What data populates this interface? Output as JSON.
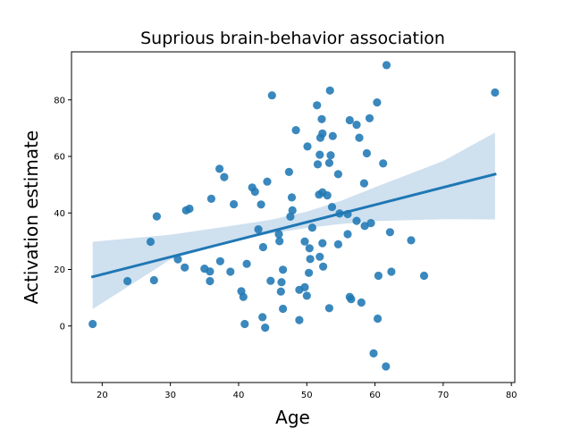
{
  "chart_data": {
    "type": "scatter",
    "title": "Suprious brain-behavior association",
    "xlabel": "Age",
    "ylabel": "Activation estimate",
    "xlim": [
      15.5,
      80.5
    ],
    "ylim": [
      -20,
      97
    ],
    "xticks": [
      20,
      30,
      40,
      50,
      60,
      70,
      80
    ],
    "yticks": [
      0,
      20,
      40,
      60,
      80
    ],
    "grid": false,
    "legend": "none",
    "colors": {
      "points": "#1f77b4",
      "line": "#1f77b4",
      "band": "#cfe0ef"
    },
    "points": [
      [
        18.6,
        0.7
      ],
      [
        23.7,
        15.9
      ],
      [
        27.1,
        29.8
      ],
      [
        27.6,
        16.2
      ],
      [
        28.0,
        38.8
      ],
      [
        31.1,
        23.6
      ],
      [
        32.1,
        20.7
      ],
      [
        32.3,
        40.9
      ],
      [
        32.8,
        41.5
      ],
      [
        35.0,
        20.3
      ],
      [
        35.8,
        19.3
      ],
      [
        35.8,
        15.9
      ],
      [
        36.0,
        45.0
      ],
      [
        37.2,
        55.6
      ],
      [
        37.3,
        22.9
      ],
      [
        37.9,
        52.7
      ],
      [
        38.8,
        19.2
      ],
      [
        39.3,
        43.1
      ],
      [
        40.4,
        12.3
      ],
      [
        40.7,
        10.3
      ],
      [
        40.9,
        0.7
      ],
      [
        41.2,
        22.0
      ],
      [
        42.0,
        49.0
      ],
      [
        42.4,
        47.5
      ],
      [
        42.9,
        34.2
      ],
      [
        43.3,
        43.0
      ],
      [
        43.5,
        3.1
      ],
      [
        43.6,
        27.9
      ],
      [
        43.9,
        -0.6
      ],
      [
        44.2,
        51.1
      ],
      [
        44.7,
        16.0
      ],
      [
        44.9,
        81.6
      ],
      [
        45.9,
        32.5
      ],
      [
        46.0,
        30.0
      ],
      [
        46.2,
        12.2
      ],
      [
        46.3,
        15.5
      ],
      [
        46.5,
        6.1
      ],
      [
        46.5,
        19.9
      ],
      [
        47.4,
        54.5
      ],
      [
        47.6,
        38.7
      ],
      [
        47.8,
        45.5
      ],
      [
        47.9,
        40.9
      ],
      [
        48.4,
        69.3
      ],
      [
        48.9,
        2.1
      ],
      [
        48.9,
        12.8
      ],
      [
        49.7,
        13.7
      ],
      [
        49.7,
        29.9
      ],
      [
        50.0,
        10.7
      ],
      [
        50.1,
        63.5
      ],
      [
        50.3,
        18.8
      ],
      [
        50.4,
        27.5
      ],
      [
        50.5,
        23.7
      ],
      [
        50.8,
        34.8
      ],
      [
        51.5,
        78.1
      ],
      [
        51.6,
        57.2
      ],
      [
        51.8,
        46.5
      ],
      [
        51.9,
        24.5
      ],
      [
        51.9,
        60.6
      ],
      [
        52.0,
        66.6
      ],
      [
        52.2,
        73.2
      ],
      [
        52.3,
        68.1
      ],
      [
        52.3,
        47.3
      ],
      [
        52.3,
        29.3
      ],
      [
        52.4,
        21.0
      ],
      [
        53.0,
        46.2
      ],
      [
        53.3,
        57.7
      ],
      [
        53.3,
        6.3
      ],
      [
        53.4,
        83.3
      ],
      [
        53.5,
        60.4
      ],
      [
        53.7,
        42.1
      ],
      [
        53.8,
        67.2
      ],
      [
        54.6,
        28.9
      ],
      [
        54.6,
        53.7
      ],
      [
        54.8,
        39.8
      ],
      [
        56.0,
        39.6
      ],
      [
        56.0,
        32.5
      ],
      [
        56.3,
        72.8
      ],
      [
        56.3,
        10.3
      ],
      [
        56.5,
        9.5
      ],
      [
        57.3,
        37.2
      ],
      [
        57.3,
        71.2
      ],
      [
        57.7,
        66.6
      ],
      [
        58.0,
        8.3
      ],
      [
        58.4,
        50.5
      ],
      [
        58.5,
        35.4
      ],
      [
        58.8,
        61.1
      ],
      [
        59.2,
        73.5
      ],
      [
        59.4,
        36.4
      ],
      [
        59.8,
        -9.7
      ],
      [
        60.3,
        79.1
      ],
      [
        60.4,
        2.6
      ],
      [
        60.5,
        17.8
      ],
      [
        61.2,
        57.5
      ],
      [
        61.6,
        -14.3
      ],
      [
        61.7,
        92.3
      ],
      [
        62.2,
        33.2
      ],
      [
        62.4,
        19.2
      ],
      [
        65.3,
        30.3
      ],
      [
        67.2,
        17.8
      ],
      [
        77.6,
        82.6
      ]
    ],
    "regression": {
      "x_range": [
        18.6,
        77.6
      ],
      "y_at_ends": [
        17.4,
        53.7
      ],
      "ci_upper": [
        [
          18.6,
          29.8
        ],
        [
          30,
          32.3
        ],
        [
          40,
          35.8
        ],
        [
          45,
          37.7
        ],
        [
          50,
          40.5
        ],
        [
          55,
          44.3
        ],
        [
          60,
          49.1
        ],
        [
          70,
          58.4
        ],
        [
          77.6,
          68.4
        ]
      ],
      "ci_lower": [
        [
          18.6,
          6.0
        ],
        [
          30,
          23.5
        ],
        [
          40,
          30.5
        ],
        [
          45,
          32.8
        ],
        [
          50,
          34.7
        ],
        [
          55,
          36.1
        ],
        [
          60,
          37.1
        ],
        [
          70,
          37.8
        ],
        [
          77.6,
          37.7
        ]
      ]
    }
  }
}
